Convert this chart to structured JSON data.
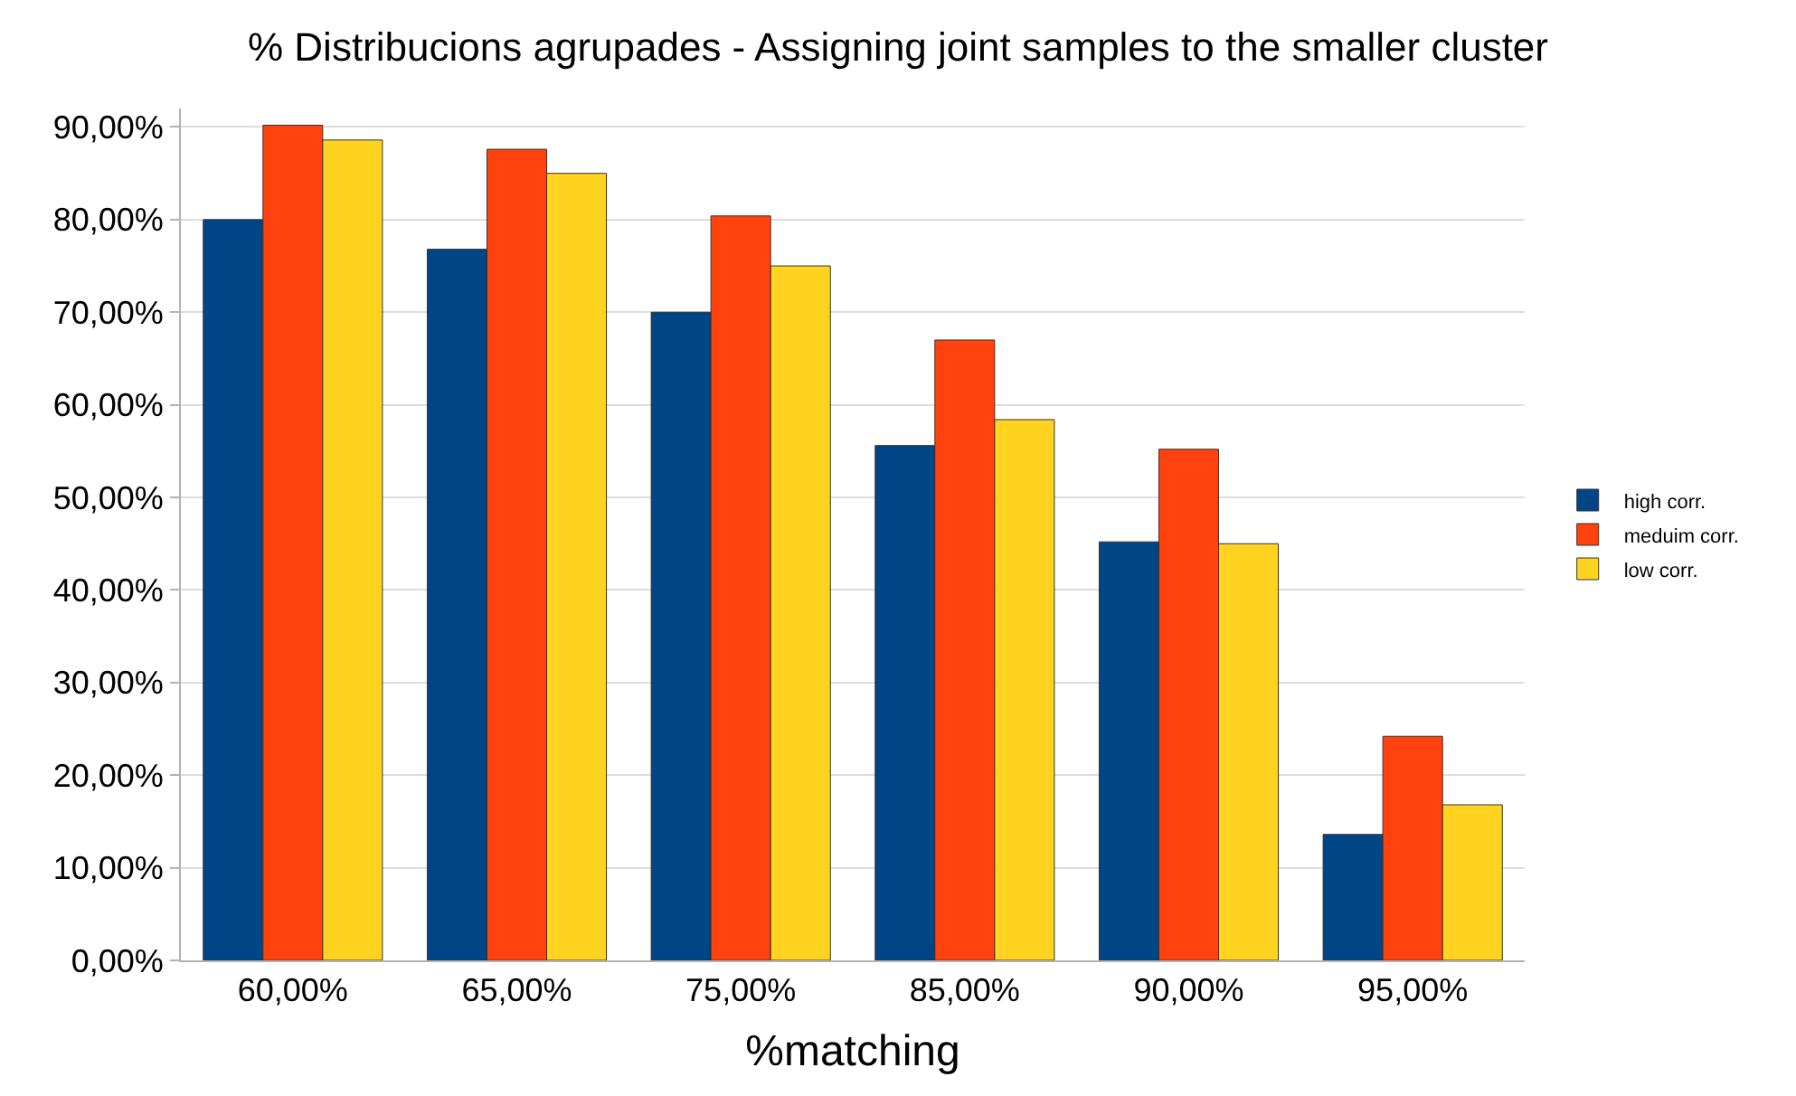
{
  "chart_data": {
    "type": "bar",
    "title": "% Distribucions agrupades - Assigning joint samples to the smaller cluster",
    "xlabel": "%matching",
    "categories": [
      "60,00%",
      "65,00%",
      "75,00%",
      "85,00%",
      "90,00%",
      "95,00%"
    ],
    "series": [
      {
        "name": "high corr.",
        "color": "#004586",
        "values": [
          80,
          76.8,
          70,
          55.6,
          45.2,
          13.6
        ]
      },
      {
        "name": "meduim corr.",
        "color": "#ff420e",
        "values": [
          90.2,
          87.6,
          80.4,
          67,
          55.2,
          24.2
        ]
      },
      {
        "name": "low corr.",
        "color": "#ffd320",
        "values": [
          88.6,
          85,
          75,
          58.4,
          45,
          16.8
        ]
      }
    ],
    "ylim": [
      0,
      92
    ],
    "yticks": [
      {
        "value": 0,
        "label": "0,00%"
      },
      {
        "value": 10,
        "label": "10,00%"
      },
      {
        "value": 20,
        "label": "20,00%"
      },
      {
        "value": 30,
        "label": "30,00%"
      },
      {
        "value": 40,
        "label": "40,00%"
      },
      {
        "value": 50,
        "label": "50,00%"
      },
      {
        "value": 60,
        "label": "60,00%"
      },
      {
        "value": 70,
        "label": "70,00%"
      },
      {
        "value": 80,
        "label": "80,00%"
      },
      {
        "value": 90,
        "label": "90,00%"
      }
    ],
    "grid": "y",
    "legend": "right"
  }
}
